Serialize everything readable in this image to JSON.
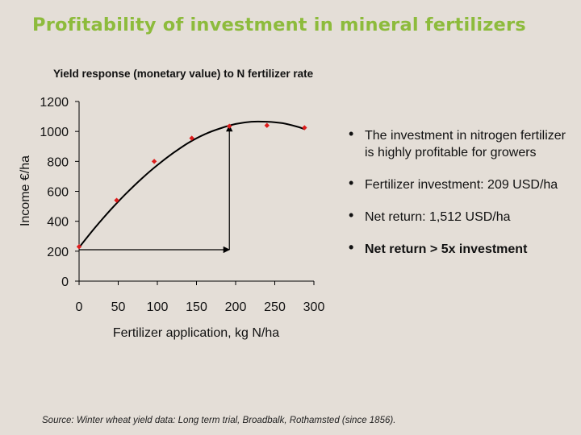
{
  "slide": {
    "title": "Profitability of investment in mineral fertilizers",
    "bullets": [
      "The investment in nitrogen fertilizer is highly profitable for growers",
      "Fertilizer investment: 209 USD/ha",
      "Net return: 1,512 USD/ha",
      "Net return > 5x investment"
    ],
    "source": "Source: Winter wheat yield data: Long term trial, Broadbalk, Rothamsted (since 1856)."
  },
  "chart_data": {
    "type": "scatter",
    "title": "Yield response (monetary value) to N fertilizer rate",
    "xlabel": "Fertilizer application, kg N/ha",
    "ylabel": "Income €/ha",
    "xlim": [
      0,
      300
    ],
    "ylim": [
      0,
      1200
    ],
    "xticks": [
      0,
      50,
      100,
      150,
      200,
      250,
      300
    ],
    "yticks": [
      0,
      200,
      400,
      600,
      800,
      1000,
      1200
    ],
    "grid": false,
    "points": {
      "x": [
        0,
        48,
        96,
        144,
        192,
        240,
        288
      ],
      "y": [
        230,
        540,
        800,
        955,
        1035,
        1040,
        1025
      ]
    },
    "fit_curve": {
      "x": [
        0,
        20,
        40,
        60,
        80,
        100,
        120,
        140,
        160,
        180,
        200,
        220,
        240,
        260,
        280,
        288
      ],
      "y": [
        225,
        355,
        475,
        585,
        685,
        775,
        855,
        925,
        980,
        1020,
        1050,
        1065,
        1065,
        1055,
        1030,
        1015
      ]
    },
    "annotation_arrows": [
      {
        "from": [
          0,
          210
        ],
        "to": [
          192,
          210
        ]
      },
      {
        "from": [
          192,
          210
        ],
        "to": [
          192,
          1040
        ]
      }
    ],
    "colors": {
      "points": "#dd1c1c",
      "line": "#000000"
    }
  }
}
